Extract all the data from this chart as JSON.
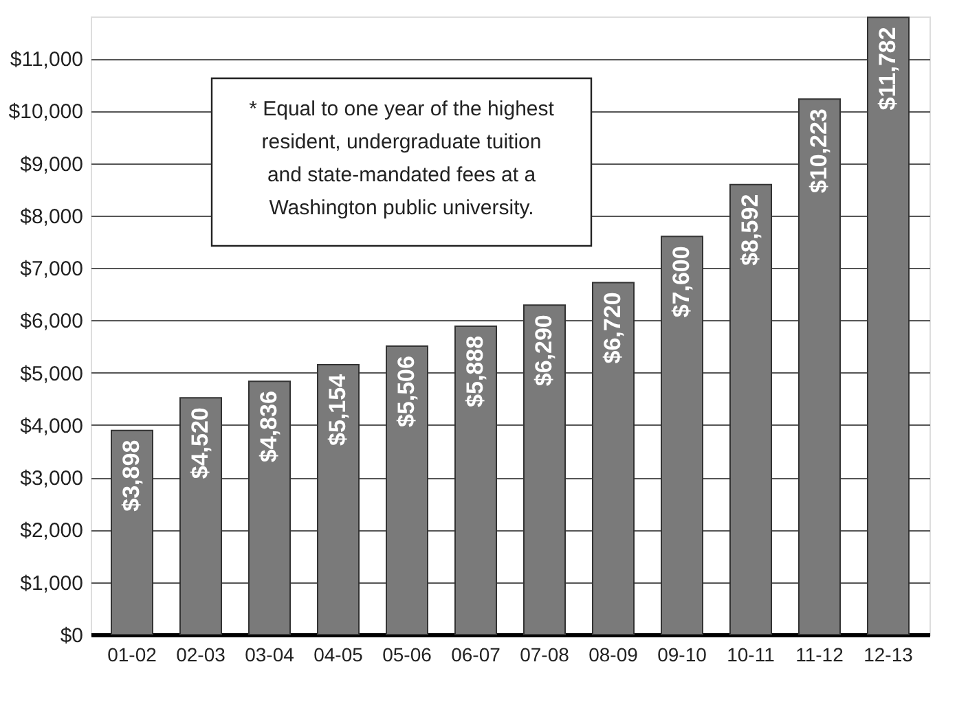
{
  "chart_data": {
    "type": "bar",
    "categories": [
      "01-02",
      "02-03",
      "03-04",
      "04-05",
      "05-06",
      "06-07",
      "07-08",
      "08-09",
      "09-10",
      "10-11",
      "11-12",
      "12-13"
    ],
    "values": [
      3898,
      4520,
      4836,
      5154,
      5506,
      5888,
      6290,
      6720,
      7600,
      8592,
      10223,
      11782
    ],
    "value_labels": [
      "$3,898",
      "$4,520",
      "$4,836",
      "$5,154",
      "$5,506",
      "$5,888",
      "$6,290",
      "$6,720",
      "$7,600",
      "$8,592",
      "$10,223",
      "$11,782"
    ],
    "color": "#7a7a7a",
    "ylim": [
      0,
      11800
    ],
    "yticks": [
      {
        "value": 0,
        "label": "$0"
      },
      {
        "value": 1000,
        "label": "$1,000"
      },
      {
        "value": 2000,
        "label": "$2,000"
      },
      {
        "value": 3000,
        "label": "$3,000"
      },
      {
        "value": 4000,
        "label": "$4,000"
      },
      {
        "value": 5000,
        "label": "$5,000"
      },
      {
        "value": 6000,
        "label": "$6,000"
      },
      {
        "value": 7000,
        "label": "$7,000"
      },
      {
        "value": 8000,
        "label": "$8,000"
      },
      {
        "value": 9000,
        "label": "$9,000"
      },
      {
        "value": 10000,
        "label": "$10,000"
      },
      {
        "value": 11000,
        "label": "$11,000"
      }
    ],
    "grid": "y",
    "annotations": [
      "* Equal to one year of the highest\nresident, undergraduate tuition\nand state-mandated fees at a\nWashington public university."
    ]
  }
}
